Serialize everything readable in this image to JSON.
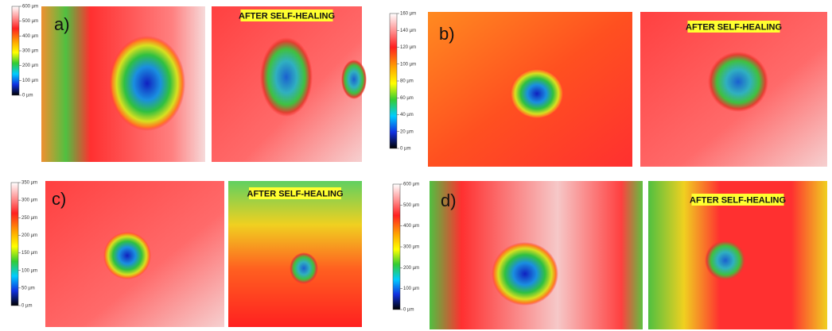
{
  "panels": [
    {
      "label": "a)",
      "after_label": "AFTER SELF-HEALING",
      "scale_ticks": [
        "600 µm",
        "500 µm",
        "400 µm",
        "300 µm",
        "200 µm",
        "100 µm",
        "0 µm"
      ]
    },
    {
      "label": "b)",
      "after_label": "AFTER SELF-HEALING",
      "scale_ticks": [
        "160 µm",
        "140 µm",
        "120 µm",
        "100 µm",
        "80 µm",
        "60 µm",
        "40 µm",
        "20 µm",
        "0 µm"
      ]
    },
    {
      "label": "c)",
      "after_label": "AFTER SELF-HEALING",
      "scale_ticks": [
        "350 µm",
        "300 µm",
        "250 µm",
        "200 µm",
        "150 µm",
        "100 µm",
        "50 µm",
        "0 µm"
      ]
    },
    {
      "label": "d)",
      "after_label": "AFTER SELF-HEALING",
      "scale_ticks": [
        "600 µm",
        "500 µm",
        "400 µm",
        "300 µm",
        "200 µm",
        "100 µm",
        "0 µm"
      ]
    }
  ]
}
